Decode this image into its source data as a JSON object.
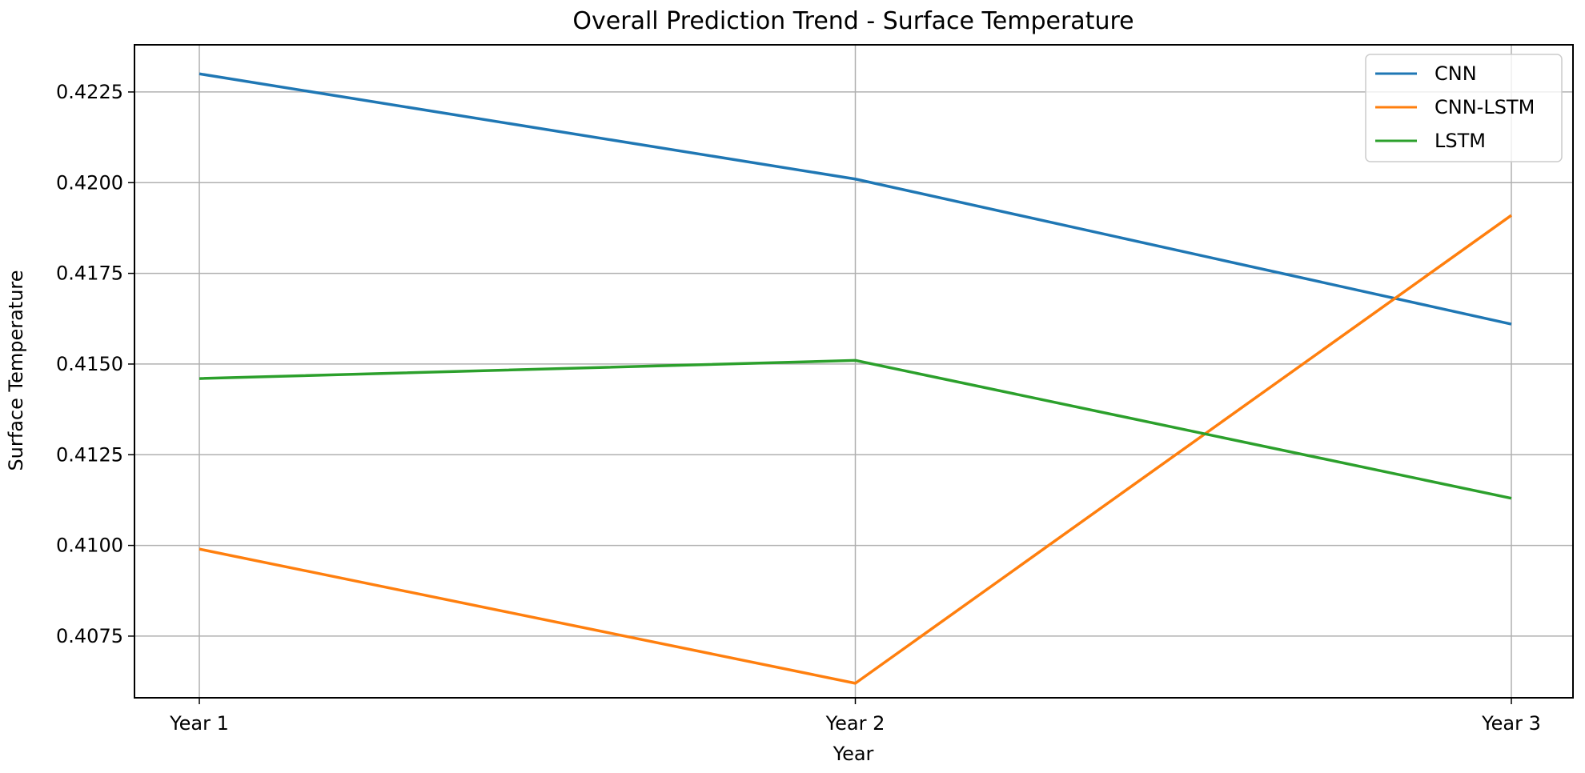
{
  "chart_data": {
    "type": "line",
    "title": "Overall Prediction Trend - Surface Temperature",
    "xlabel": "Year",
    "ylabel": "Surface Temperature",
    "categories": [
      "Year 1",
      "Year 2",
      "Year 3"
    ],
    "ylim": [
      0.4058,
      0.4238
    ],
    "yticks": [
      0.4075,
      0.41,
      0.4125,
      0.415,
      0.4175,
      0.42,
      0.4225
    ],
    "ytick_labels": [
      "0.4075",
      "0.4100",
      "0.4125",
      "0.4150",
      "0.4175",
      "0.4200",
      "0.4225"
    ],
    "grid": true,
    "legend_position": "top-right",
    "series": [
      {
        "name": "CNN",
        "color": "#1f77b4",
        "values": [
          0.423,
          0.4201,
          0.4161
        ]
      },
      {
        "name": "CNN-LSTM",
        "color": "#ff7f0e",
        "values": [
          0.4099,
          0.4062,
          0.4191
        ]
      },
      {
        "name": "LSTM",
        "color": "#2ca02c",
        "values": [
          0.4146,
          0.4151,
          0.4113
        ]
      }
    ]
  }
}
